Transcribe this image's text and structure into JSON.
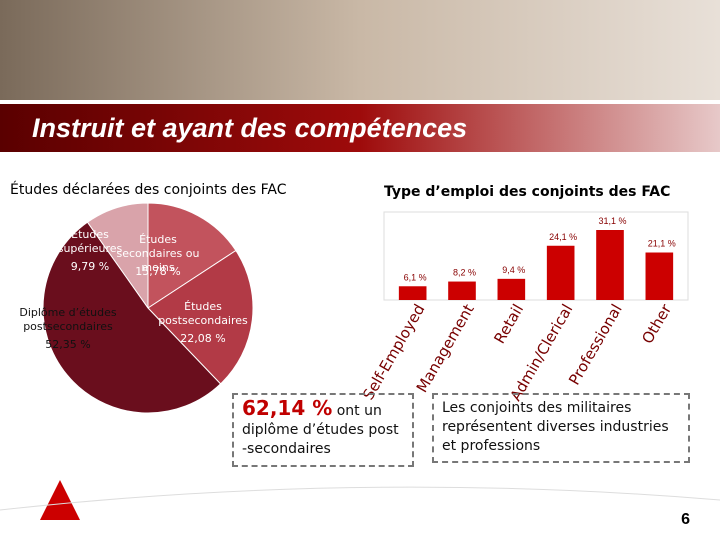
{
  "title": "Instruit et ayant des compétences",
  "chart_data": [
    {
      "type": "pie",
      "title": "Études déclarées des conjoints des FAC",
      "categories": [
        "Études supérieures",
        "Études secondaires ou moins",
        "Études postsecondaires",
        "Diplôme d’études postsecondaires"
      ],
      "values": [
        9.79,
        15.78,
        22.08,
        52.35
      ],
      "value_labels": [
        "9,79 %",
        "15,78 %",
        "22,08 %",
        "52,35 %"
      ],
      "colors": [
        "#d9a3aa",
        "#c2535d",
        "#b23a46",
        "#6a0e1d"
      ]
    },
    {
      "type": "bar",
      "title": "Type d’emploi des conjoints des FAC",
      "categories": [
        "Self-Employed",
        "Management",
        "Retail",
        "Admin/Clerical",
        "Professional",
        "Other"
      ],
      "values": [
        6.1,
        8.2,
        9.4,
        24.1,
        31.1,
        21.1
      ],
      "value_labels": [
        "6,1 %",
        "8,2 %",
        "9,4 %",
        "24,1 %",
        "31,1 %",
        "21,1 %"
      ],
      "color": "#cc0000"
    }
  ],
  "callouts": [
    {
      "highlight": "62,14 %",
      "text": "ont un diplôme d’études post -secondaires"
    },
    {
      "text": "Les conjoints des militaires représentent diverses industries et professions"
    }
  ],
  "page_number": "6"
}
